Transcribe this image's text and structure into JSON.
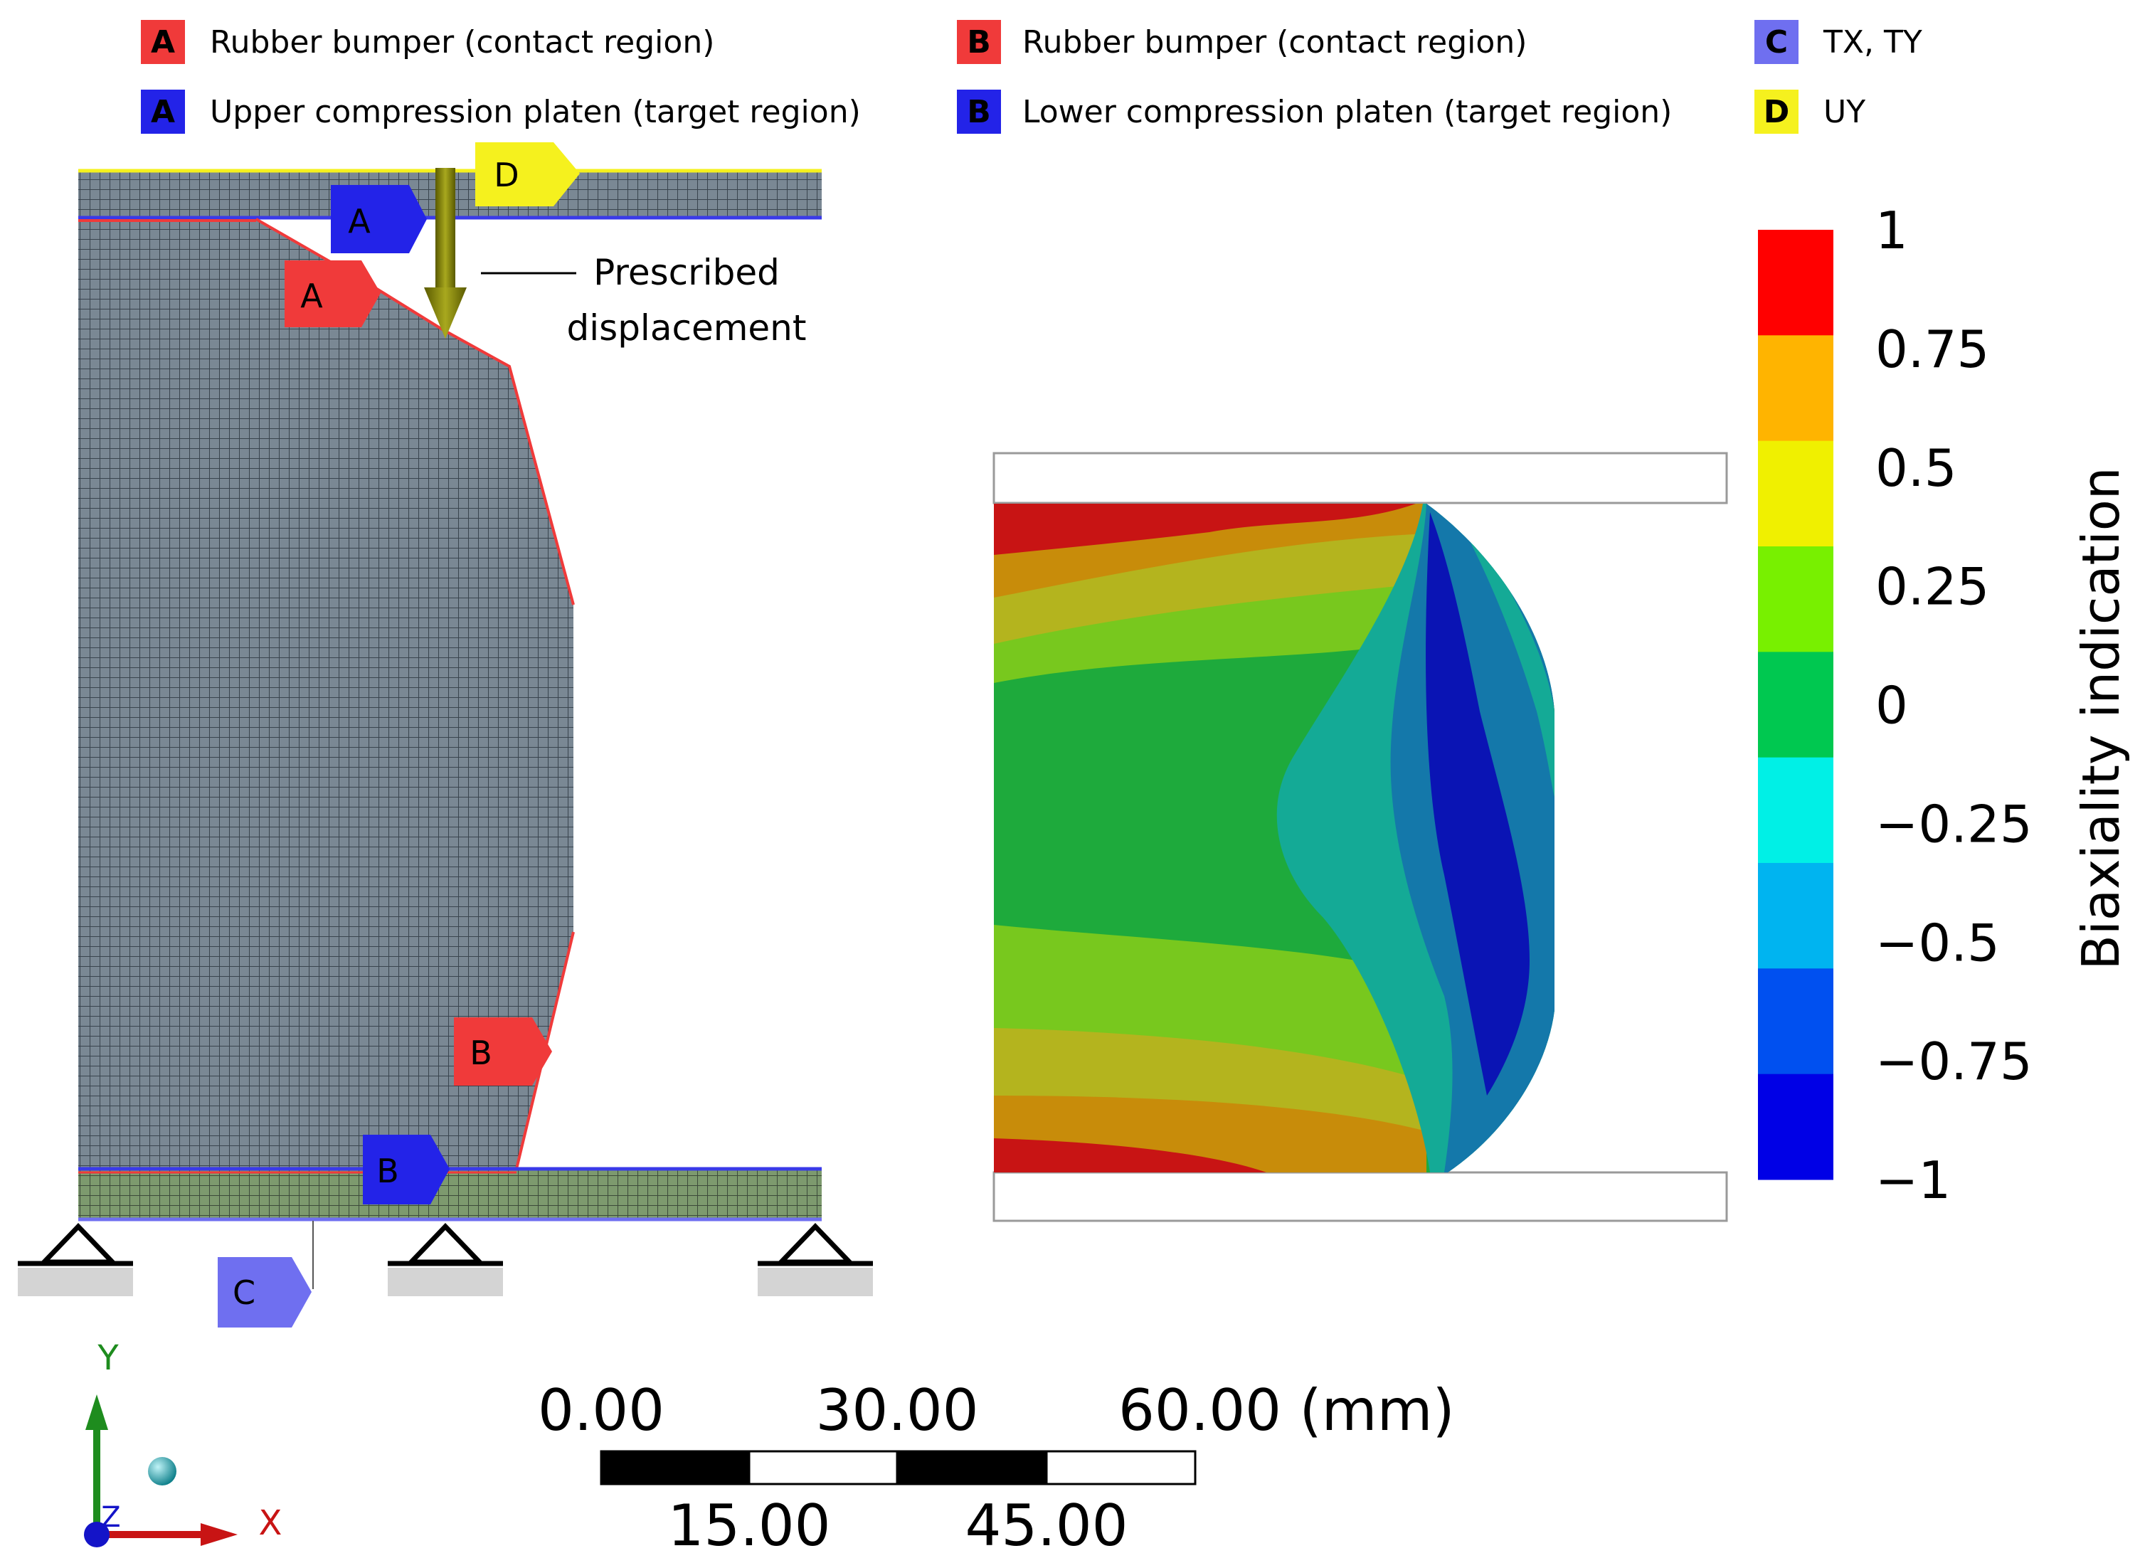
{
  "legend": {
    "items": [
      {
        "letter": "A",
        "text": "Rubber bumper (contact region)",
        "color": "#f03a3a"
      },
      {
        "letter": "A",
        "text": "Upper compression platen (target region)",
        "color": "#2323e8"
      },
      {
        "letter": "B",
        "text": "Rubber bumper (contact region)",
        "color": "#f03a3a"
      },
      {
        "letter": "B",
        "text": "Lower compression platen (target region)",
        "color": "#2323e8"
      },
      {
        "letter": "C",
        "text": "TX, TY",
        "color": "#6f6ff0"
      },
      {
        "letter": "D",
        "text": "UY",
        "color": "#f5f11e"
      }
    ]
  },
  "model": {
    "flags": [
      {
        "letter": "A",
        "color": "#2323e8"
      },
      {
        "letter": "A",
        "color": "#f03a3a"
      },
      {
        "letter": "B",
        "color": "#f03a3a"
      },
      {
        "letter": "B",
        "color": "#2323e8"
      },
      {
        "letter": "C",
        "color": "#6f6ff0"
      },
      {
        "letter": "D",
        "color": "#f5f11e"
      }
    ],
    "annotation_line1": "Prescribed",
    "annotation_line2": "displacement"
  },
  "colorbar": {
    "title": "Biaxiality indication",
    "tick_labels": [
      "1",
      "0.75",
      "0.5",
      "0.25",
      "0",
      "−0.25",
      "−0.5",
      "−0.75",
      "−1"
    ],
    "colors": [
      "#ff0000",
      "#ffb400",
      "#f0f000",
      "#78f000",
      "#00c850",
      "#00f0e6",
      "#00b4f0",
      "#0050f0",
      "#0000e6"
    ]
  },
  "contour_colors": {
    "red": "#c81414",
    "orange": "#c88c0a",
    "olive": "#b4b41e",
    "lime": "#78c81e",
    "green": "#1eaa3c",
    "teal": "#14aa96",
    "blue": "#1478aa",
    "deepblue": "#0a14b4"
  },
  "scale_bar": {
    "top_labels": [
      "0.00",
      "30.00",
      "60.00 (mm)"
    ],
    "bottom_labels": [
      "15.00",
      "45.00"
    ]
  },
  "triad": {
    "x_label": "X",
    "y_label": "Y",
    "z_label": "Z"
  }
}
